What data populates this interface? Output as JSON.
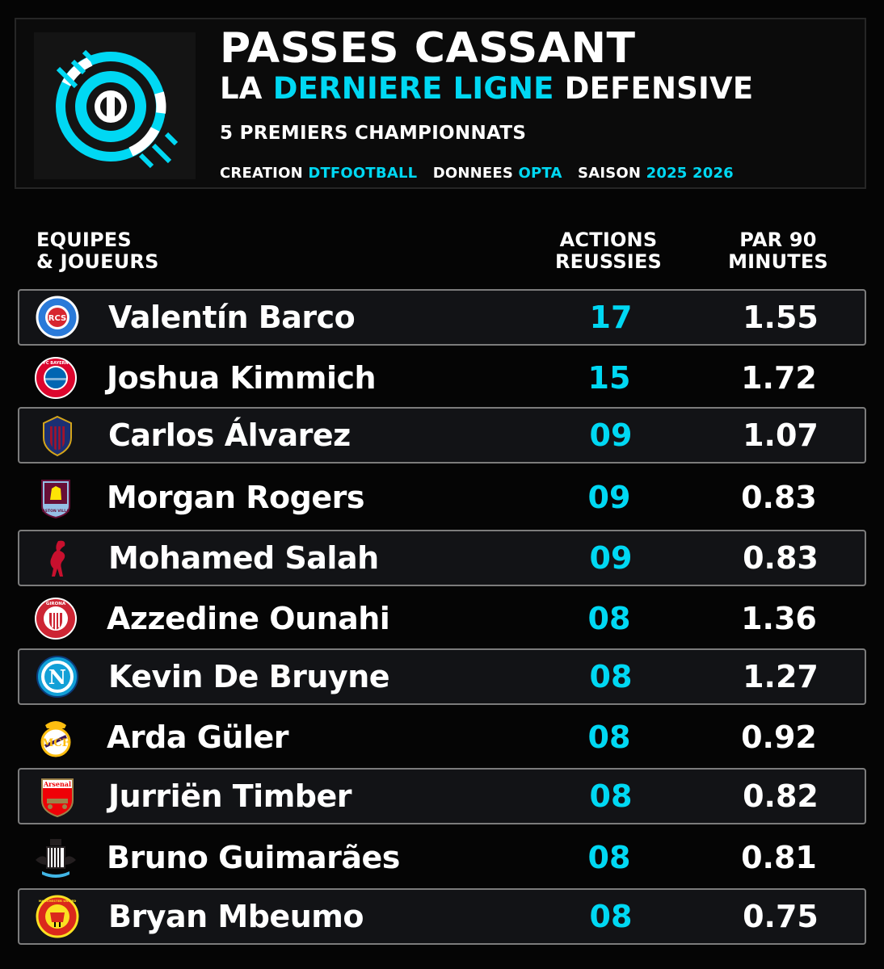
{
  "header": {
    "title_line1": "PASSES CASSANT",
    "title_line2_pre": "LA ",
    "title_line2_accent": "DERNIERE LIGNE",
    "title_line2_post": " DEFENSIVE",
    "subtitle": "5 PREMIERS CHAMPIONNATS",
    "credits": {
      "creation_label": "CREATION",
      "creation_value": "DTFOOTBALL",
      "data_label": "DONNEES",
      "data_value": "OPTA",
      "season_label": "SAISON",
      "season_value": "2025 2026"
    }
  },
  "columns": {
    "players": "EQUIPES\n& JOUEURS",
    "actions": "ACTIONS\nREUSSIES",
    "per90": "PAR 90\nMINUTES"
  },
  "colors": {
    "accent": "#00d8f3",
    "background": "#050505",
    "row_border": "#7c7c7c"
  },
  "rows": [
    {
      "player": "Valentín Barco",
      "actions": "17",
      "per90": "1.55",
      "crest": "strasbourg-crest"
    },
    {
      "player": "Joshua Kimmich",
      "actions": "15",
      "per90": "1.72",
      "crest": "bayern-crest"
    },
    {
      "player": "Carlos Álvarez",
      "actions": "09",
      "per90": "1.07",
      "crest": "levante-crest"
    },
    {
      "player": "Morgan Rogers",
      "actions": "09",
      "per90": "0.83",
      "crest": "aston-villa-crest"
    },
    {
      "player": "Mohamed Salah",
      "actions": "09",
      "per90": "0.83",
      "crest": "liverpool-crest"
    },
    {
      "player": "Azzedine Ounahi",
      "actions": "08",
      "per90": "1.36",
      "crest": "girona-crest"
    },
    {
      "player": "Kevin De Bruyne",
      "actions": "08",
      "per90": "1.27",
      "crest": "napoli-crest"
    },
    {
      "player": "Arda Güler",
      "actions": "08",
      "per90": "0.92",
      "crest": "real-madrid-crest"
    },
    {
      "player": "Jurriën Timber",
      "actions": "08",
      "per90": "0.82",
      "crest": "arsenal-crest"
    },
    {
      "player": "Bruno Guimarães",
      "actions": "08",
      "per90": "0.81",
      "crest": "newcastle-crest"
    },
    {
      "player": "Bryan Mbeumo",
      "actions": "08",
      "per90": "0.75",
      "crest": "manchester-united-crest"
    }
  ],
  "crest_text": {
    "strasbourg": "RCS",
    "bayern": "FC BAYERN",
    "arsenal": "Arsenal",
    "girona": "GIRONA",
    "napoli": "N",
    "aston_villa": "ASTON VILLA",
    "manutd": "MANCHESTER UNITED"
  }
}
